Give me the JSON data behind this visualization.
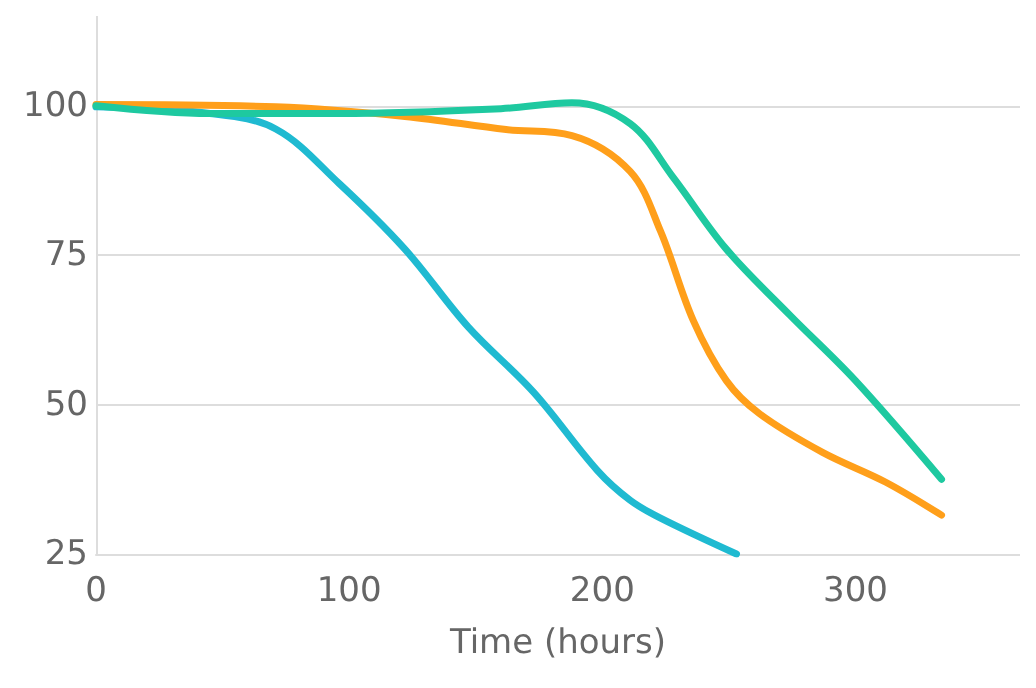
{
  "chart_data": {
    "type": "line",
    "xlabel": "Time (hours)",
    "xlim": [
      0,
      365
    ],
    "xticks": [
      0,
      100,
      200,
      300
    ],
    "ylim": [
      25,
      115
    ],
    "yticks": [
      25,
      50,
      75,
      100
    ],
    "grid": "y",
    "marker": "none",
    "line_style": "solid",
    "series": [
      {
        "color": "#1fbad1",
        "x": [
          0,
          45,
          71,
          96,
          122,
          147,
          173,
          198,
          211,
          223,
          253
        ],
        "values": [
          99.8,
          98.7,
          96.1,
          87,
          76,
          63,
          52,
          39,
          34,
          31,
          25
        ]
      },
      {
        "color": "#ff9f1a",
        "x": [
          0,
          71,
          122,
          162,
          188,
          211,
          223,
          236,
          249,
          262,
          287,
          312,
          334
        ],
        "values": [
          100.2,
          99.8,
          98.2,
          96,
          95,
          89,
          79,
          64,
          54,
          48.5,
          42,
          37,
          31.5
        ]
      },
      {
        "color": "#1ec9a0",
        "x": [
          0,
          45,
          96,
          160,
          188,
          211,
          228,
          249,
          274,
          300,
          334
        ],
        "values": [
          100,
          98.7,
          98.7,
          99.5,
          100.5,
          97,
          88,
          76,
          65,
          54,
          37.5
        ]
      }
    ]
  }
}
